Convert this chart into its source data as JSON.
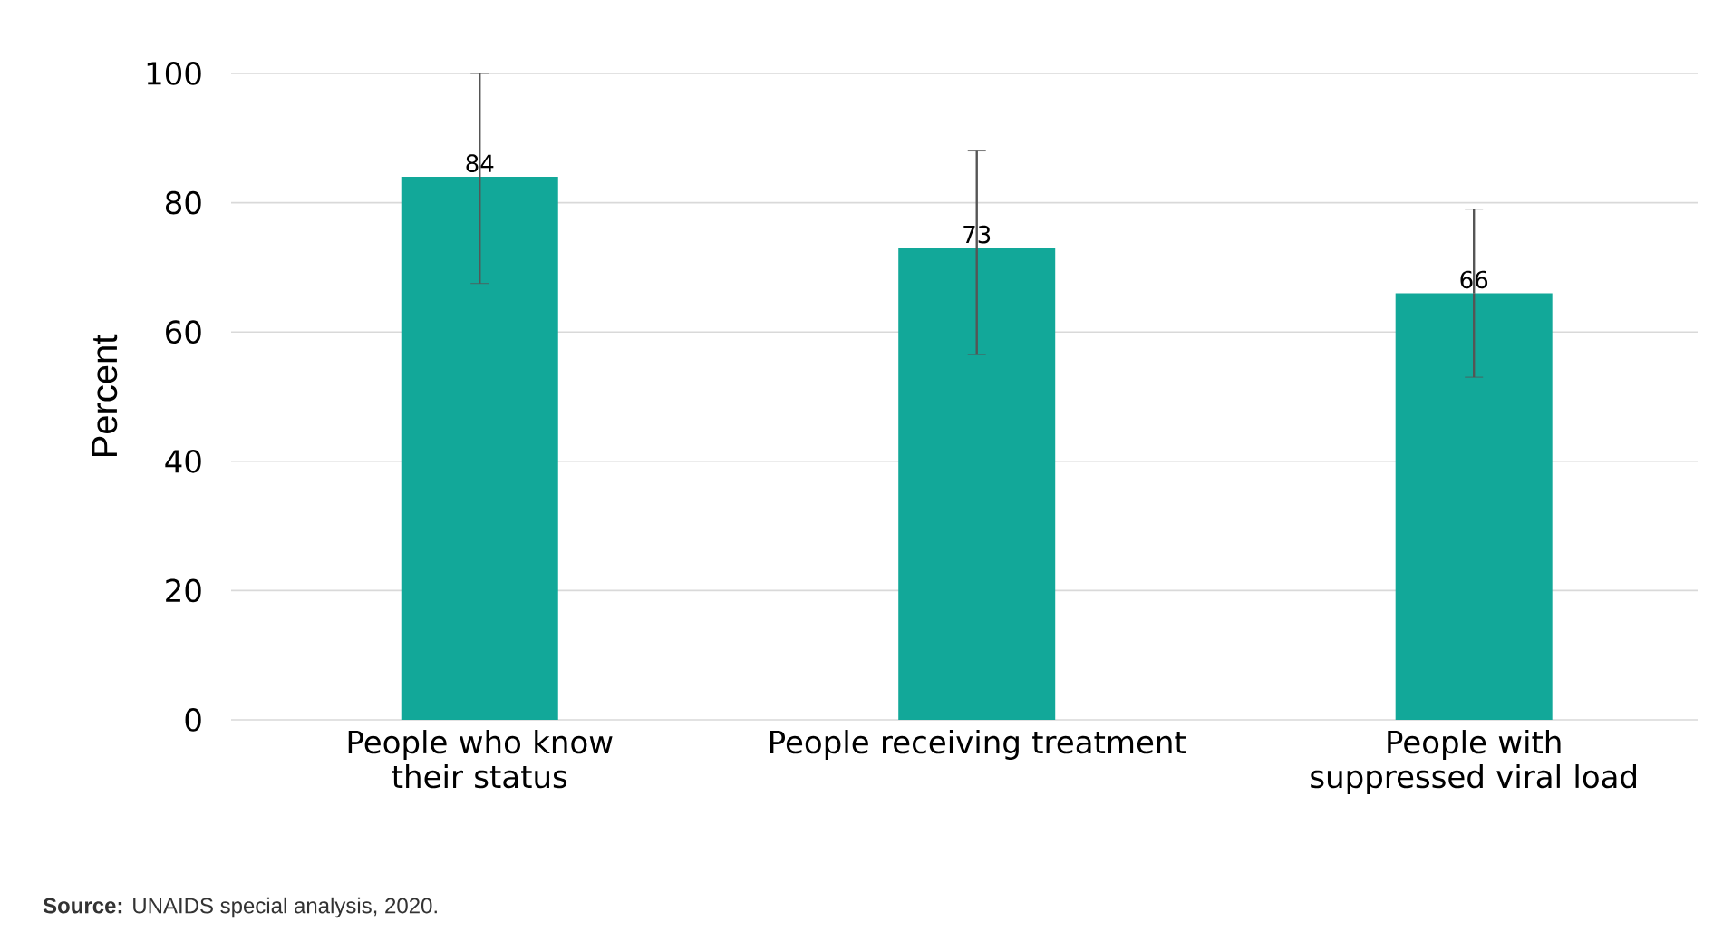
{
  "chart_data": {
    "type": "bar",
    "ylabel": "Percent",
    "categories": [
      "People who know their status",
      "People receiving treatment",
      "People with suppressed viral load"
    ],
    "values": [
      84,
      73,
      66
    ],
    "errors": [
      [
        67.5,
        100
      ],
      [
        56.5,
        88
      ],
      [
        53,
        79
      ]
    ],
    "color": "#12a899",
    "ylim": [
      0,
      100
    ],
    "yticks": [
      0,
      20,
      40,
      60,
      80,
      100
    ],
    "grid": "y",
    "data_labels": true,
    "annotations": [
      "**Source:** UNAIDS special analysis, 2020."
    ]
  }
}
